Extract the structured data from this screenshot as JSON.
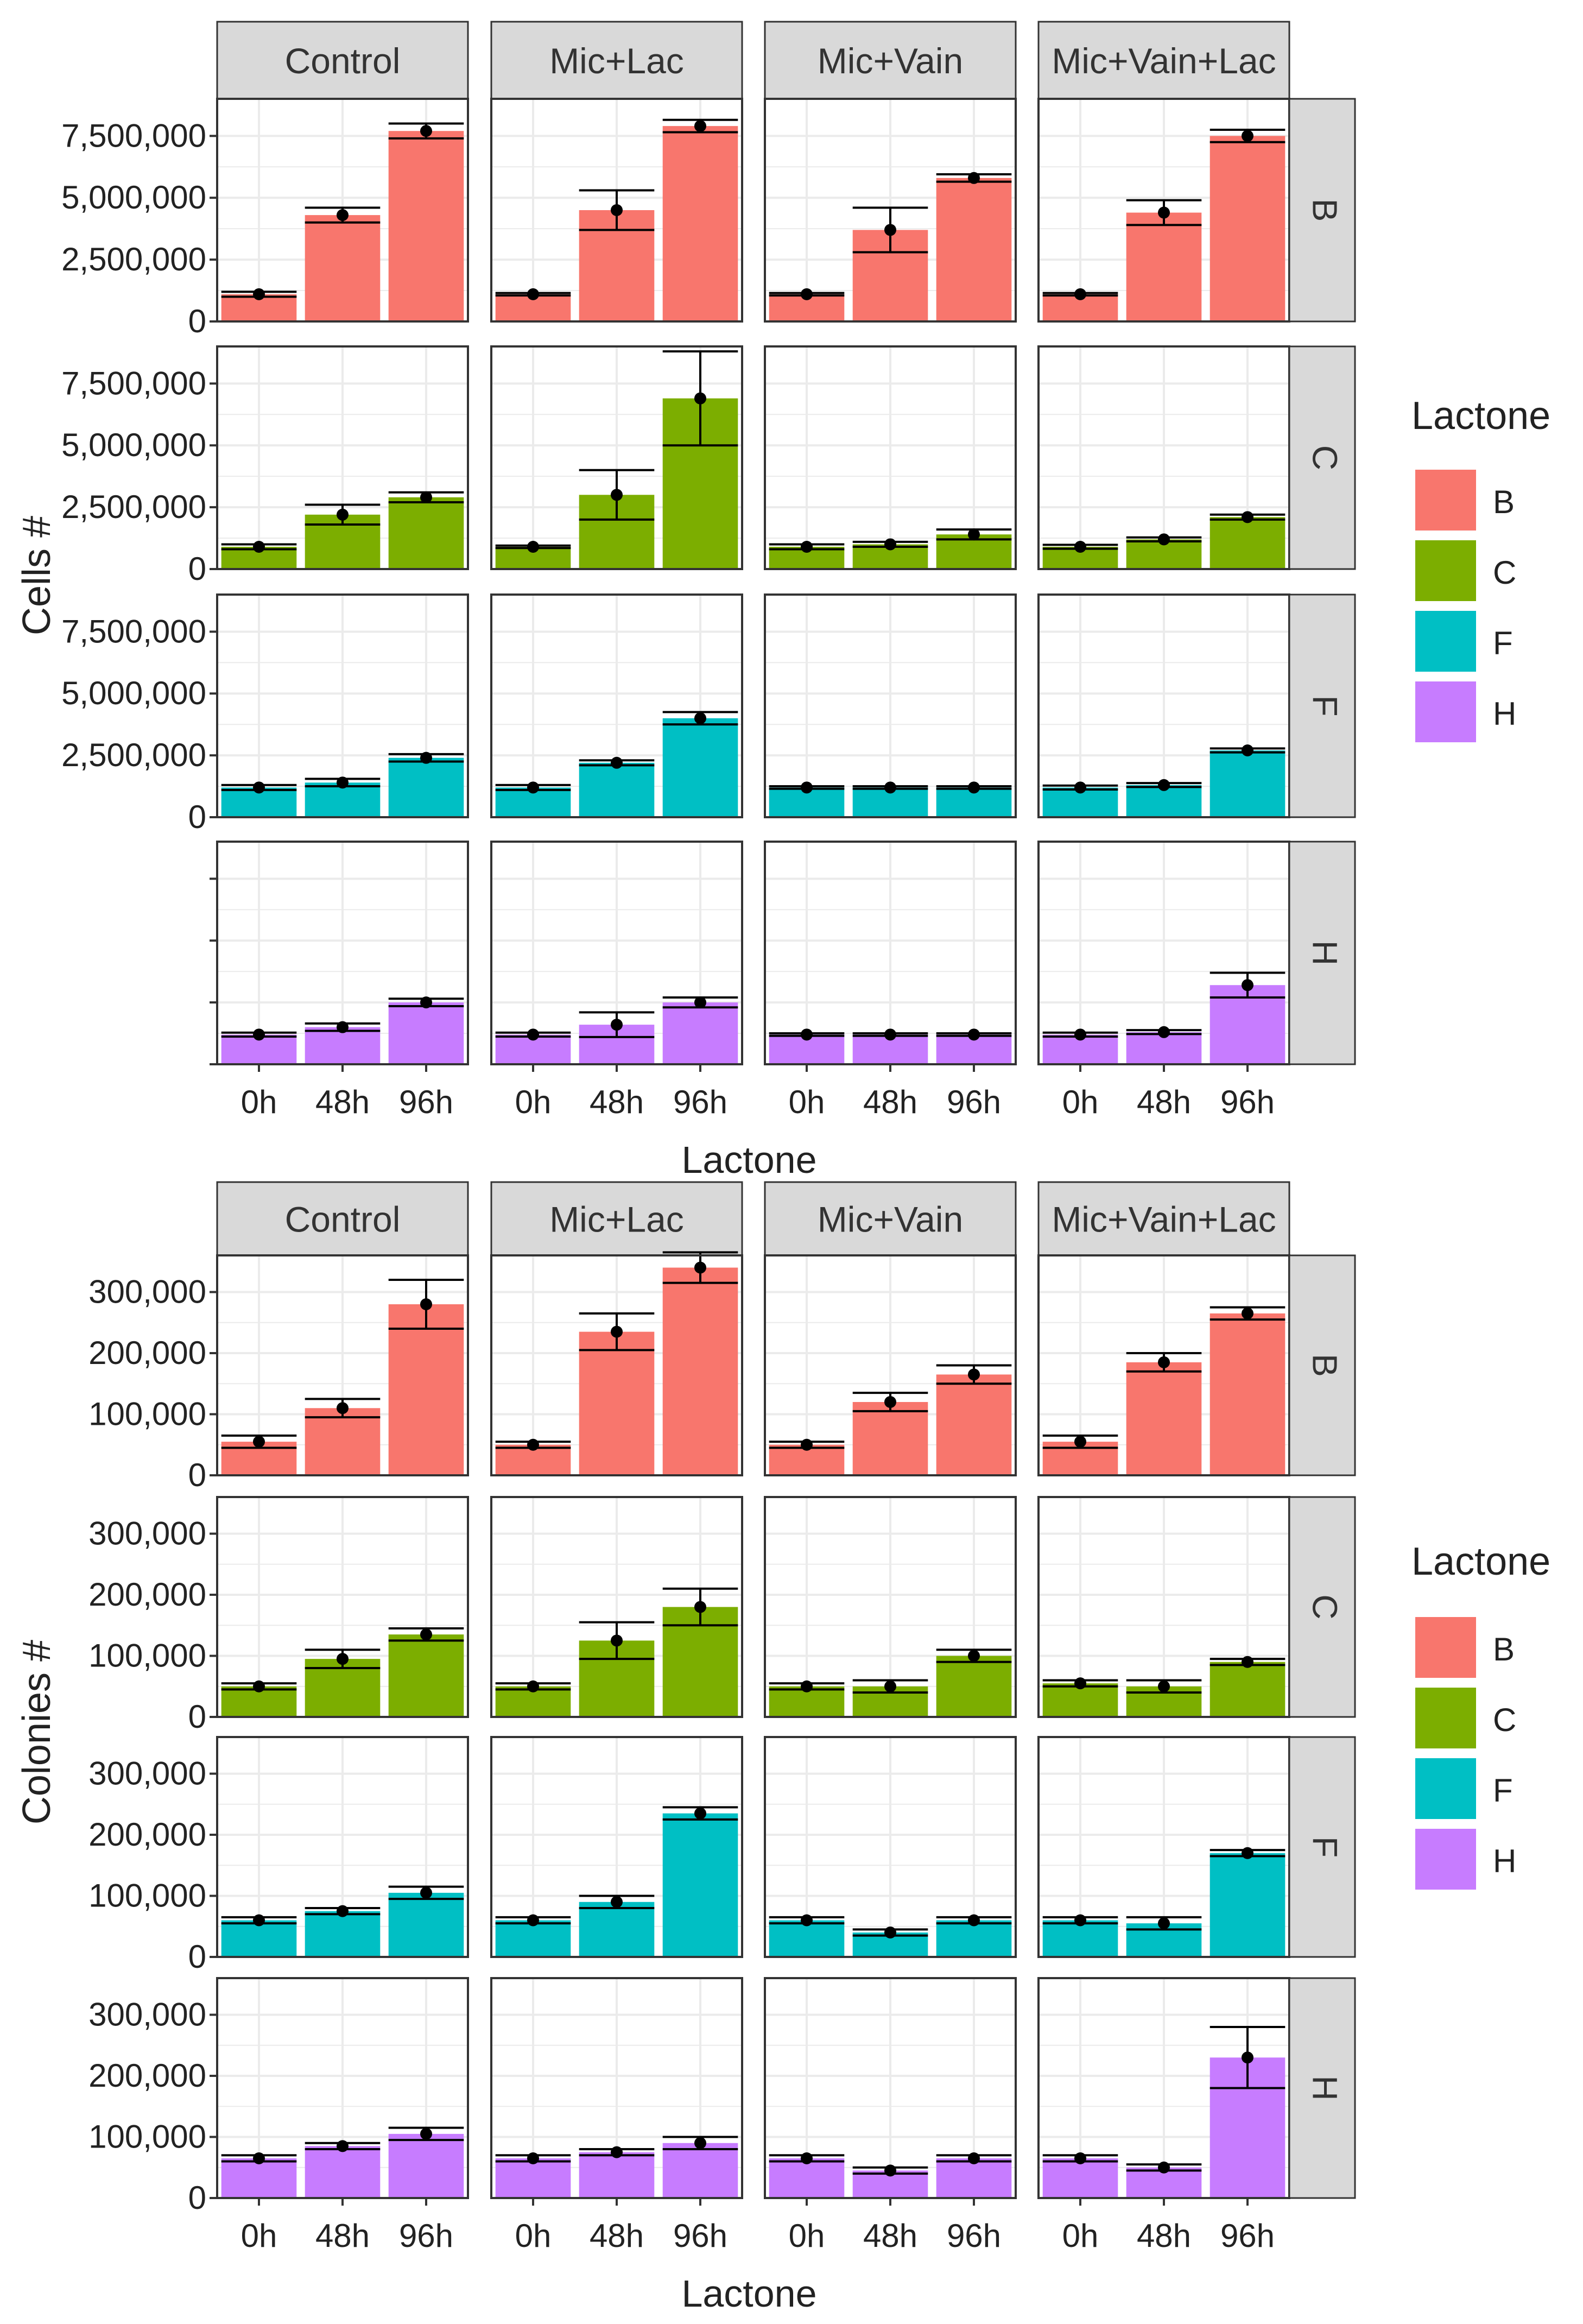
{
  "chart_data": [
    {
      "type": "bar",
      "ylabel": "Cells #",
      "xlabel": "Lactone",
      "categories": [
        "0h",
        "48h",
        "96h"
      ],
      "treatments": [
        "Control",
        "Mic+Lac",
        "Mic+Vain",
        "Mic+Vain+Lac"
      ],
      "ylim": [
        0,
        9000000
      ],
      "yticks": [
        0,
        2500000,
        5000000,
        7500000
      ],
      "ytick_labels": [
        "0",
        "2,500,000",
        "5,000,000",
        "7,500,000"
      ],
      "legend": {
        "title": "Lactone",
        "entries": [
          "B",
          "C",
          "F",
          "H"
        ]
      },
      "rows": [
        {
          "lactone": "B",
          "show_ytick_labels": true,
          "panels": [
            {
              "treatment": "Control",
              "values": [
                1100000,
                4300000,
                7700000
              ],
              "errors": [
                100000,
                300000,
                300000
              ]
            },
            {
              "treatment": "Mic+Lac",
              "values": [
                1100000,
                4500000,
                7900000
              ],
              "errors": [
                50000,
                800000,
                250000
              ]
            },
            {
              "treatment": "Mic+Vain",
              "values": [
                1100000,
                3700000,
                5800000
              ],
              "errors": [
                50000,
                900000,
                150000
              ]
            },
            {
              "treatment": "Mic+Vain+Lac",
              "values": [
                1100000,
                4400000,
                7500000
              ],
              "errors": [
                50000,
                500000,
                250000
              ]
            }
          ]
        },
        {
          "lactone": "C",
          "show_ytick_labels": true,
          "panels": [
            {
              "treatment": "Control",
              "values": [
                900000,
                2200000,
                2900000
              ],
              "errors": [
                100000,
                400000,
                200000
              ]
            },
            {
              "treatment": "Mic+Lac",
              "values": [
                900000,
                3000000,
                6900000
              ],
              "errors": [
                50000,
                1000000,
                1900000
              ]
            },
            {
              "treatment": "Mic+Vain",
              "values": [
                900000,
                1000000,
                1400000
              ],
              "errors": [
                100000,
                100000,
                200000
              ]
            },
            {
              "treatment": "Mic+Vain+Lac",
              "values": [
                900000,
                1200000,
                2100000
              ],
              "errors": [
                80000,
                80000,
                100000
              ]
            }
          ]
        },
        {
          "lactone": "F",
          "show_ytick_labels": true,
          "panels": [
            {
              "treatment": "Control",
              "values": [
                1200000,
                1400000,
                2400000
              ],
              "errors": [
                100000,
                150000,
                150000
              ]
            },
            {
              "treatment": "Mic+Lac",
              "values": [
                1200000,
                2200000,
                4000000
              ],
              "errors": [
                100000,
                100000,
                250000
              ]
            },
            {
              "treatment": "Mic+Vain",
              "values": [
                1200000,
                1200000,
                1200000
              ],
              "errors": [
                50000,
                50000,
                50000
              ]
            },
            {
              "treatment": "Mic+Vain+Lac",
              "values": [
                1200000,
                1300000,
                2700000
              ],
              "errors": [
                80000,
                80000,
                80000
              ]
            }
          ]
        },
        {
          "lactone": "H",
          "show_ytick_labels": false,
          "panels": [
            {
              "treatment": "Control",
              "values": [
                1200000,
                1500000,
                2500000
              ],
              "errors": [
                80000,
                150000,
                150000
              ]
            },
            {
              "treatment": "Mic+Lac",
              "values": [
                1200000,
                1600000,
                2500000
              ],
              "errors": [
                80000,
                500000,
                200000
              ]
            },
            {
              "treatment": "Mic+Vain",
              "values": [
                1200000,
                1200000,
                1200000
              ],
              "errors": [
                50000,
                50000,
                50000
              ]
            },
            {
              "treatment": "Mic+Vain+Lac",
              "values": [
                1200000,
                1300000,
                3200000
              ],
              "errors": [
                80000,
                80000,
                500000
              ]
            }
          ]
        }
      ]
    },
    {
      "type": "bar",
      "ylabel": "Colonies #",
      "xlabel": "Lactone",
      "categories": [
        "0h",
        "48h",
        "96h"
      ],
      "treatments": [
        "Control",
        "Mic+Lac",
        "Mic+Vain",
        "Mic+Vain+Lac"
      ],
      "ylim": [
        0,
        360000
      ],
      "yticks": [
        0,
        100000,
        200000,
        300000
      ],
      "ytick_labels": [
        "0",
        "100,000",
        "200,000",
        "300,000"
      ],
      "legend": {
        "title": "Lactone",
        "entries": [
          "B",
          "C",
          "F",
          "H"
        ]
      },
      "rows": [
        {
          "lactone": "B",
          "show_ytick_labels": true,
          "panels": [
            {
              "treatment": "Control",
              "values": [
                55000,
                110000,
                280000
              ],
              "errors": [
                10000,
                15000,
                40000
              ]
            },
            {
              "treatment": "Mic+Lac",
              "values": [
                50000,
                235000,
                340000
              ],
              "errors": [
                5000,
                30000,
                25000
              ]
            },
            {
              "treatment": "Mic+Vain",
              "values": [
                50000,
                120000,
                165000
              ],
              "errors": [
                5000,
                15000,
                15000
              ]
            },
            {
              "treatment": "Mic+Vain+Lac",
              "values": [
                55000,
                185000,
                265000
              ],
              "errors": [
                10000,
                15000,
                10000
              ]
            }
          ]
        },
        {
          "lactone": "C",
          "show_ytick_labels": true,
          "panels": [
            {
              "treatment": "Control",
              "values": [
                50000,
                95000,
                135000
              ],
              "errors": [
                5000,
                15000,
                10000
              ]
            },
            {
              "treatment": "Mic+Lac",
              "values": [
                50000,
                125000,
                180000
              ],
              "errors": [
                5000,
                30000,
                30000
              ]
            },
            {
              "treatment": "Mic+Vain",
              "values": [
                50000,
                50000,
                100000
              ],
              "errors": [
                5000,
                10000,
                10000
              ]
            },
            {
              "treatment": "Mic+Vain+Lac",
              "values": [
                55000,
                50000,
                90000
              ],
              "errors": [
                5000,
                10000,
                5000
              ]
            }
          ]
        },
        {
          "lactone": "F",
          "show_ytick_labels": true,
          "panels": [
            {
              "treatment": "Control",
              "values": [
                60000,
                75000,
                105000
              ],
              "errors": [
                5000,
                5000,
                10000
              ]
            },
            {
              "treatment": "Mic+Lac",
              "values": [
                60000,
                90000,
                235000
              ],
              "errors": [
                5000,
                10000,
                10000
              ]
            },
            {
              "treatment": "Mic+Vain",
              "values": [
                60000,
                40000,
                60000
              ],
              "errors": [
                5000,
                5000,
                5000
              ]
            },
            {
              "treatment": "Mic+Vain+Lac",
              "values": [
                60000,
                55000,
                170000
              ],
              "errors": [
                5000,
                10000,
                5000
              ]
            }
          ]
        },
        {
          "lactone": "H",
          "show_ytick_labels": true,
          "panels": [
            {
              "treatment": "Control",
              "values": [
                65000,
                85000,
                105000
              ],
              "errors": [
                5000,
                5000,
                10000
              ]
            },
            {
              "treatment": "Mic+Lac",
              "values": [
                65000,
                75000,
                90000
              ],
              "errors": [
                5000,
                5000,
                10000
              ]
            },
            {
              "treatment": "Mic+Vain",
              "values": [
                65000,
                45000,
                65000
              ],
              "errors": [
                5000,
                5000,
                5000
              ]
            },
            {
              "treatment": "Mic+Vain+Lac",
              "values": [
                65000,
                50000,
                230000
              ],
              "errors": [
                5000,
                5000,
                50000
              ]
            }
          ]
        }
      ]
    }
  ],
  "colors": {
    "B": "#f8766d",
    "C": "#7cae00",
    "F": "#00bfc4",
    "H": "#c77cff",
    "strip": "#d9d9d9",
    "grid": "#ebebeb",
    "axis": "#333333",
    "text": "#333333"
  }
}
